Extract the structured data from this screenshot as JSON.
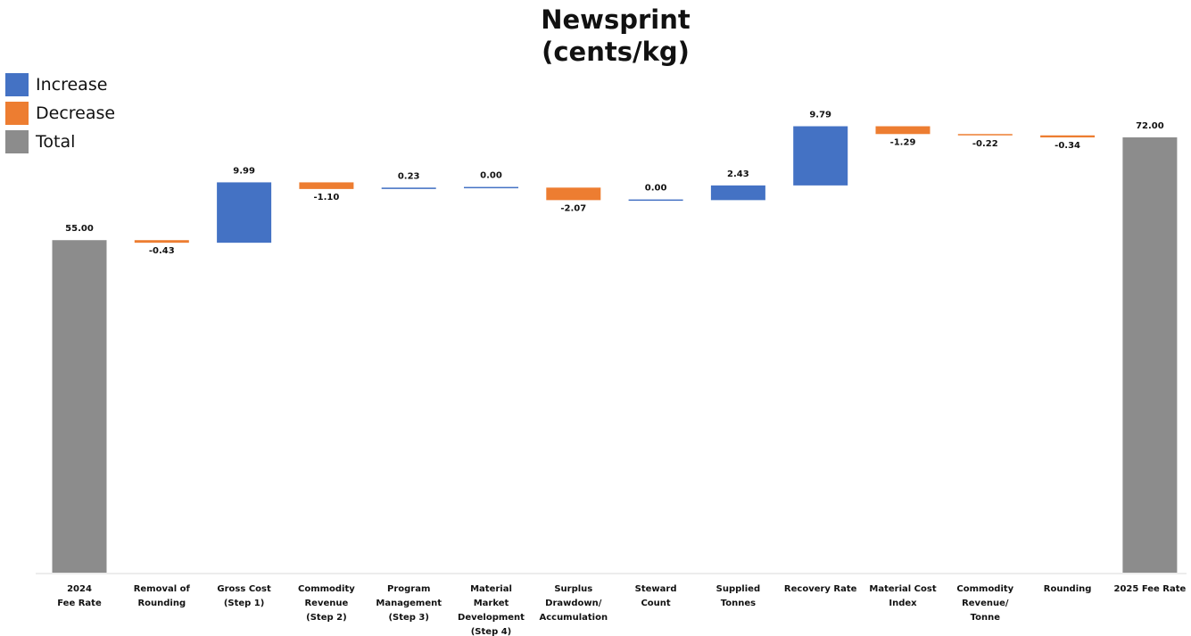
{
  "chart_data": {
    "type": "waterfall",
    "title_lines": [
      "Newsprint",
      "(cents/kg)"
    ],
    "legend": [
      {
        "label": "Increase",
        "color": "#4472C4"
      },
      {
        "label": "Decrease",
        "color": "#ED7D31"
      },
      {
        "label": "Total",
        "color": "#8C8C8C"
      }
    ],
    "categories": [
      [
        "2024",
        "Fee Rate"
      ],
      [
        "Removal of",
        "Rounding"
      ],
      [
        "Gross Cost",
        "(Step 1)"
      ],
      [
        "Commodity",
        "Revenue",
        "(Step 2)"
      ],
      [
        "Program",
        "Management",
        "(Step 3)"
      ],
      [
        "Material",
        "Market",
        "Development",
        "(Step 4)"
      ],
      [
        "Surplus",
        "Drawdown/",
        "Accumulation"
      ],
      [
        "Steward",
        "Count"
      ],
      [
        "Supplied",
        "Tonnes"
      ],
      [
        "Recovery Rate"
      ],
      [
        "Material Cost",
        "Index"
      ],
      [
        "Commodity",
        "Revenue/",
        "Tonne"
      ],
      [
        "Rounding"
      ],
      [
        "2025 Fee Rate"
      ]
    ],
    "values": [
      55.0,
      -0.43,
      9.99,
      -1.1,
      0.23,
      0.0,
      -2.07,
      0.0,
      2.43,
      9.79,
      -1.29,
      -0.22,
      -0.34,
      72.0
    ],
    "kinds": [
      "total",
      "decrease",
      "increase",
      "decrease",
      "increase",
      "increase",
      "decrease",
      "increase",
      "increase",
      "increase",
      "decrease",
      "decrease",
      "decrease",
      "total"
    ],
    "labels": [
      "55.00",
      "-0.43",
      "9.99",
      "-1.10",
      "0.23",
      "0.00",
      "-2.07",
      "0.00",
      "2.43",
      "9.79",
      "-1.29",
      "-0.22",
      "-0.34",
      "72.00"
    ],
    "ylim": [
      0,
      75
    ],
    "grid": false
  }
}
